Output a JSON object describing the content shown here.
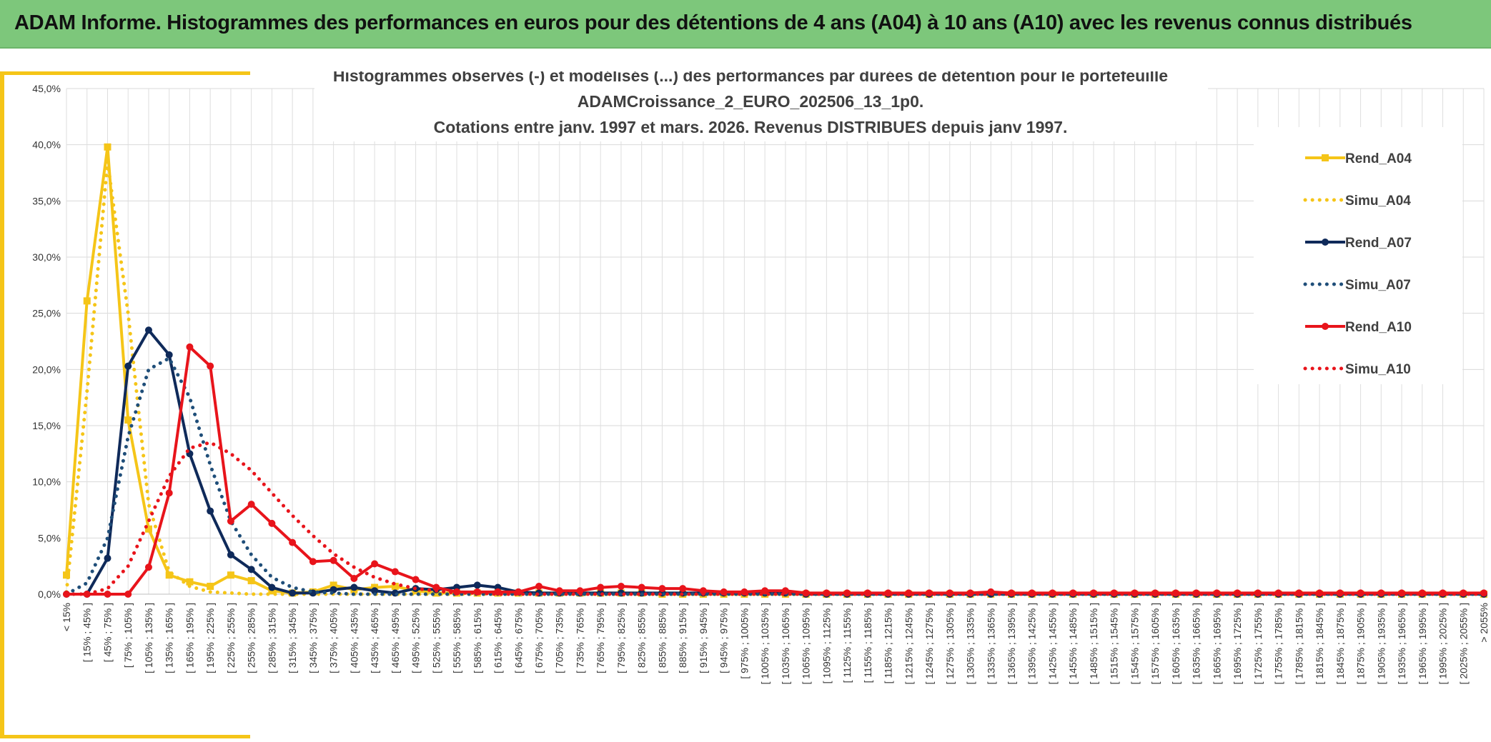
{
  "header": {
    "title": "ADAM Informe. Histogrammes des performances en euros pour des détentions de 4 ans (A04) à 10 ans (A10) avec les revenus connus distribués"
  },
  "colors": {
    "banner": "#7dc77b",
    "accent": "#f5c518",
    "A04": "#f5c518",
    "A07": "#0f2a5a",
    "A10": "#e8141b"
  },
  "chart_data": {
    "type": "line",
    "title_lines": [
      "Histogrammes observés (-) et modélisés (...) des performances  par durées de détention pour le portefeuille",
      "ADAMCroissance_2_EURO_202506_13_1p0.",
      "Cotations entre janv. 1997 et mars. 2026. Revenus DISTRIBUES depuis janv 1997."
    ],
    "ylim": [
      0,
      45
    ],
    "y_ticks": [
      "0,0%",
      "5,0%",
      "10,0%",
      "15,0%",
      "20,0%",
      "25,0%",
      "30,0%",
      "35,0%",
      "40,0%",
      "45,0%"
    ],
    "categories": [
      "< 15%",
      "[ 15% ; 45% ]",
      "[ 45% ; 75% ]",
      "[ 75% ; 105% ]",
      "[ 105% ; 135% ]",
      "[ 135% ; 165% ]",
      "[ 165% ; 195% ]",
      "[ 195% ; 225% ]",
      "[ 225% ; 255% ]",
      "[ 255% ; 285% ]",
      "[ 285% ; 315% ]",
      "[ 315% ; 345% ]",
      "[ 345% ; 375% ]",
      "[ 375% ; 405% ]",
      "[ 405% ; 435% ]",
      "[ 435% ; 465% ]",
      "[ 465% ; 495% ]",
      "[ 495% ; 525% ]",
      "[ 525% ; 555% ]",
      "[ 555% ; 585% ]",
      "[ 585% ; 615% ]",
      "[ 615% ; 645% ]",
      "[ 645% ; 675% ]",
      "[ 675% ; 705% ]",
      "[ 705% ; 735% ]",
      "[ 735% ; 765% ]",
      "[ 765% ; 795% ]",
      "[ 795% ; 825% ]",
      "[ 825% ; 855% ]",
      "[ 855% ; 885% ]",
      "[ 885% ; 915% ]",
      "[ 915% ; 945% ]",
      "[ 945% ; 975% ]",
      "[ 975% ; 1005% ]",
      "[ 1005% ; 1035% ]",
      "[ 1035% ; 1065% ]",
      "[ 1065% ; 1095% ]",
      "[ 1095% ; 1125% ]",
      "[ 1125% ; 1155% ]",
      "[ 1155% ; 1185% ]",
      "[ 1185% ; 1215% ]",
      "[ 1215% ; 1245% ]",
      "[ 1245% ; 1275% ]",
      "[ 1275% ; 1305% ]",
      "[ 1305% ; 1335% ]",
      "[ 1335% ; 1365% ]",
      "[ 1365% ; 1395% ]",
      "[ 1395% ; 1425% ]",
      "[ 1425% ; 1455% ]",
      "[ 1455% ; 1485% ]",
      "[ 1485% ; 1515% ]",
      "[ 1515% ; 1545% ]",
      "[ 1545% ; 1575% ]",
      "[ 1575% ; 1605% ]",
      "[ 1605% ; 1635% ]",
      "[ 1635% ; 1665% ]",
      "[ 1665% ; 1695% ]",
      "[ 1695% ; 1725% ]",
      "[ 1725% ; 1755% ]",
      "[ 1755% ; 1785% ]",
      "[ 1785% ; 1815% ]",
      "[ 1815% ; 1845% ]",
      "[ 1845% ; 1875% ]",
      "[ 1875% ; 1905% ]",
      "[ 1905% ; 1935% ]",
      "[ 1935% ; 1965% ]",
      "[ 1965% ; 1995% ]",
      "[ 1995% ; 2025% ]",
      "[ 2025% ; 2055% ]",
      "> 2055%"
    ],
    "legend_position": "right",
    "grid": true,
    "series": [
      {
        "name": "Rend_A04",
        "color": "#f5c518",
        "style": "solid",
        "marker": "square",
        "values": [
          1.7,
          26.1,
          39.8,
          15.5,
          5.8,
          1.7,
          1.1,
          0.7,
          1.7,
          1.2,
          0.3,
          0.1,
          0.2,
          0.8,
          0.4,
          0.6,
          0.7,
          0.3,
          0.1,
          0.1,
          0.1,
          0.1,
          0.1,
          0.1,
          0.1,
          0.1,
          0.1,
          0.1,
          0.1,
          0,
          0,
          0,
          0,
          0,
          0,
          0,
          0,
          0,
          0,
          0,
          0,
          0,
          0,
          0,
          0,
          0,
          0,
          0,
          0,
          0,
          0,
          0,
          0,
          0,
          0,
          0,
          0,
          0,
          0,
          0,
          0,
          0,
          0,
          0,
          0,
          0,
          0,
          0,
          0,
          0
        ]
      },
      {
        "name": "Simu_A04",
        "color": "#f5c518",
        "style": "dotted",
        "marker": "none",
        "values": [
          0.2,
          18.0,
          38.5,
          25.0,
          8.0,
          2.0,
          0.7,
          0.2,
          0.1,
          0,
          0,
          0,
          0,
          0,
          0,
          0,
          0,
          0,
          0,
          0,
          0,
          0,
          0,
          0,
          0,
          0,
          0,
          0,
          0,
          0,
          0,
          0,
          0,
          0,
          0,
          0,
          0,
          0,
          0,
          0,
          0,
          0,
          0,
          0,
          0,
          0,
          0,
          0,
          0,
          0,
          0,
          0,
          0,
          0,
          0,
          0,
          0,
          0,
          0,
          0,
          0,
          0,
          0,
          0,
          0,
          0,
          0,
          0,
          0,
          0
        ]
      },
      {
        "name": "Rend_A07",
        "color": "#0f2a5a",
        "style": "solid",
        "marker": "circle",
        "values": [
          0,
          0,
          3.2,
          20.3,
          23.5,
          21.3,
          12.5,
          7.4,
          3.5,
          2.2,
          0.6,
          0.1,
          0.1,
          0.4,
          0.6,
          0.3,
          0.1,
          0.5,
          0.4,
          0.6,
          0.8,
          0.6,
          0.2,
          0.1,
          0.1,
          0.1,
          0.1,
          0.1,
          0.1,
          0.1,
          0.1,
          0.1,
          0.1,
          0.1,
          0.1,
          0.1,
          0,
          0,
          0,
          0,
          0,
          0,
          0,
          0,
          0,
          0,
          0,
          0,
          0,
          0,
          0,
          0,
          0,
          0,
          0,
          0,
          0,
          0,
          0,
          0,
          0,
          0,
          0,
          0,
          0,
          0,
          0,
          0,
          0,
          0
        ]
      },
      {
        "name": "Simu_A07",
        "color": "#1f4e79",
        "style": "dotted",
        "marker": "none",
        "values": [
          0,
          1.0,
          5.0,
          14.0,
          20.0,
          21.0,
          17.5,
          11.5,
          6.5,
          3.5,
          1.5,
          0.6,
          0.2,
          0.1,
          0,
          0,
          0,
          0,
          0,
          0,
          0,
          0,
          0,
          0,
          0,
          0,
          0,
          0,
          0,
          0,
          0,
          0,
          0,
          0,
          0,
          0,
          0,
          0,
          0,
          0,
          0,
          0,
          0,
          0,
          0,
          0,
          0,
          0,
          0,
          0,
          0,
          0,
          0,
          0,
          0,
          0,
          0,
          0,
          0,
          0,
          0,
          0,
          0,
          0,
          0,
          0,
          0,
          0,
          0,
          0
        ]
      },
      {
        "name": "Rend_A10",
        "color": "#e8141b",
        "style": "solid",
        "marker": "circle",
        "values": [
          0,
          0,
          0,
          0,
          2.4,
          9.0,
          22.0,
          20.3,
          6.5,
          8.0,
          6.3,
          4.6,
          2.9,
          3.0,
          1.4,
          2.7,
          2.0,
          1.3,
          0.6,
          0.2,
          0.2,
          0.2,
          0.2,
          0.7,
          0.3,
          0.3,
          0.6,
          0.7,
          0.6,
          0.5,
          0.5,
          0.3,
          0.2,
          0.2,
          0.3,
          0.3,
          0.1,
          0.1,
          0.1,
          0.1,
          0.1,
          0.1,
          0.1,
          0.1,
          0.1,
          0.2,
          0.1,
          0.1,
          0.1,
          0.1,
          0.1,
          0.1,
          0.1,
          0.1,
          0.1,
          0.1,
          0.1,
          0.1,
          0.1,
          0.1,
          0.1,
          0.1,
          0.1,
          0.1,
          0.1,
          0.1,
          0.1,
          0.1,
          0.1,
          0.1
        ]
      },
      {
        "name": "Simu_A10",
        "color": "#e8141b",
        "style": "dotted",
        "marker": "none",
        "values": [
          0,
          0,
          0.5,
          2.5,
          6.5,
          10.5,
          13.0,
          13.5,
          12.5,
          11.0,
          9.0,
          7.0,
          5.2,
          3.6,
          2.4,
          1.5,
          0.9,
          0.5,
          0.3,
          0.1,
          0.1,
          0,
          0,
          0,
          0,
          0,
          0,
          0,
          0,
          0,
          0,
          0,
          0,
          0,
          0,
          0,
          0,
          0,
          0,
          0,
          0,
          0,
          0,
          0,
          0,
          0,
          0,
          0,
          0,
          0,
          0,
          0,
          0,
          0,
          0,
          0,
          0,
          0,
          0,
          0,
          0,
          0,
          0,
          0,
          0,
          0,
          0,
          0,
          0,
          0
        ]
      }
    ]
  }
}
